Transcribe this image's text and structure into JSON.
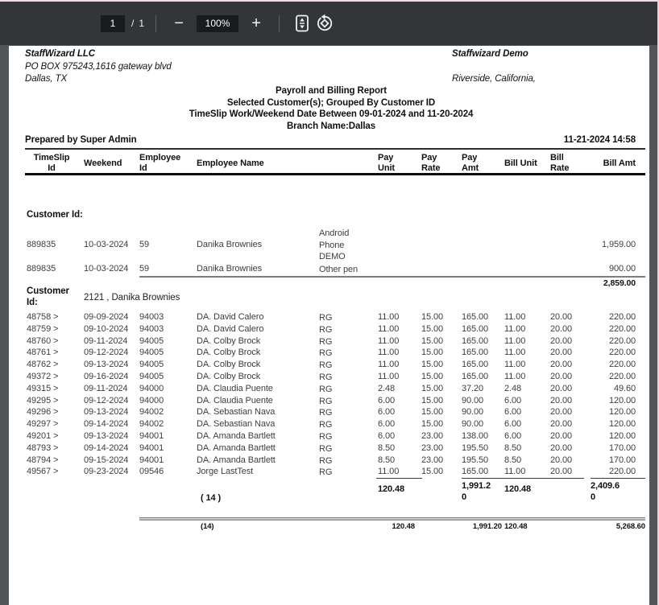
{
  "toolbar": {
    "page_current": "1",
    "page_divider": "/",
    "page_total": "1",
    "zoom_level": "100%",
    "zoom_out_glyph": "−",
    "zoom_in_glyph": "+"
  },
  "document": {
    "company": {
      "name": "StaffWizard LLC",
      "address_line1": "PO BOX 975243,1616 gateway blvd",
      "address_line2": "Dallas, TX",
      "customer_name": "Staffwizard Demo",
      "customer_location": "Riverside, California,"
    },
    "title_block": {
      "title": "Payroll and Billing Report",
      "subtitle1": "Selected Customer(s); Grouped By Customer ID",
      "subtitle2": "TimeSlip Work/Weekend Date Between 09-01-2024 and 11-20-2024",
      "subtitle3": "Branch Name:Dallas"
    },
    "meta": {
      "prepared_by": "Prepared by Super Admin",
      "generated_at": "11-21-2024 14:58"
    },
    "table": {
      "headers": [
        "TimeSlip Id",
        "Weekend",
        "Employee Id",
        "Employee Name",
        "Pay Unit",
        "Pay Rate",
        "Pay Amt",
        "Bill Unit",
        "Bill Rate",
        "Bill Amt"
      ]
    },
    "groups": [
      {
        "label": "Customer Id:",
        "value": "",
        "rows": [
          [
            "889835",
            "10-03-2024",
            "59",
            "Danika Brownies",
            "Android Phone DEMO",
            "",
            "",
            "",
            "",
            "",
            "1,959.00"
          ],
          [
            "889835",
            "10-03-2024",
            "59",
            "Danika Brownies",
            "Other pen",
            "",
            "",
            "",
            "",
            "",
            "900.00"
          ]
        ],
        "subtotal_bill_amt": "2,859.00"
      },
      {
        "label": "Customer Id:",
        "value": "2121 , Danika Brownies",
        "rows": [
          [
            "48758 >",
            "09-09-2024",
            "94003",
            "DA. David Calero",
            "RG",
            "11.00",
            "15.00",
            "165.00",
            "11.00",
            "20.00",
            "220.00"
          ],
          [
            "48759 >",
            "09-10-2024",
            "94003",
            "DA. David Calero",
            "RG",
            "11.00",
            "15.00",
            "165.00",
            "11.00",
            "20.00",
            "220.00"
          ],
          [
            "48760 >",
            "09-11-2024",
            "94005",
            "DA. Colby Brock",
            "RG",
            "11.00",
            "15.00",
            "165.00",
            "11.00",
            "20.00",
            "220.00"
          ],
          [
            "48761 >",
            "09-12-2024",
            "94005",
            "DA. Colby Brock",
            "RG",
            "11.00",
            "15.00",
            "165.00",
            "11.00",
            "20.00",
            "220.00"
          ],
          [
            "48762 >",
            "09-13-2024",
            "94005",
            "DA. Colby Brock",
            "RG",
            "11.00",
            "15.00",
            "165.00",
            "11.00",
            "20.00",
            "220.00"
          ],
          [
            "49372 >",
            "09-16-2024",
            "94005",
            "DA. Colby Brock",
            "RG",
            "11.00",
            "15.00",
            "165.00",
            "11.00",
            "20.00",
            "220.00"
          ],
          [
            "49315 >",
            "09-11-2024",
            "94000",
            "DA. Claudia Puente",
            "RG",
            "2.48",
            "15.00",
            "37.20",
            "2.48",
            "20.00",
            "49.60"
          ],
          [
            "49295 >",
            "09-12-2024",
            "94000",
            "DA. Claudia Puente",
            "RG",
            "6.00",
            "15.00",
            "90.00",
            "6.00",
            "20.00",
            "120.00"
          ],
          [
            "49296 >",
            "09-13-2024",
            "94002",
            "DA. Sebastian Nava",
            "RG",
            "6.00",
            "15.00",
            "90.00",
            "6.00",
            "20.00",
            "120.00"
          ],
          [
            "49297 >",
            "09-14-2024",
            "94002",
            "DA. Sebastian Nava",
            "RG",
            "6.00",
            "15.00",
            "90.00",
            "6.00",
            "20.00",
            "120.00"
          ],
          [
            "49201 >",
            "09-13-2024",
            "94001",
            "DA. Amanda Bartlett",
            "RG",
            "6.00",
            "23.00",
            "138.00",
            "6.00",
            "20.00",
            "120.00"
          ],
          [
            "48793 >",
            "09-14-2024",
            "94001",
            "DA. Amanda Bartlett",
            "RG",
            "8.50",
            "23.00",
            "195.50",
            "8.50",
            "20.00",
            "170.00"
          ],
          [
            "48794 >",
            "09-15-2024",
            "94001",
            "DA. Amanda Bartlett",
            "RG",
            "8.50",
            "23.00",
            "195.50",
            "8.50",
            "20.00",
            "170.00"
          ],
          [
            "49567 >",
            "09-23-2024",
            "09546",
            "Jorge LastTest",
            "RG",
            "11.00",
            "15.00",
            "165.00",
            "11.00",
            "20.00",
            "220.00"
          ]
        ],
        "totals": {
          "count": "( 14 )",
          "pay_unit": "120.48",
          "pay_amt": "1,991.20",
          "bill_unit": "120.48",
          "bill_amt": "2,409.60"
        }
      }
    ],
    "grand_total": {
      "count": "(14)",
      "pay_unit": "120.48",
      "pay_amt": "1,991.20",
      "bill_unit": "120.48",
      "bill_amt": "5,268.60"
    }
  }
}
